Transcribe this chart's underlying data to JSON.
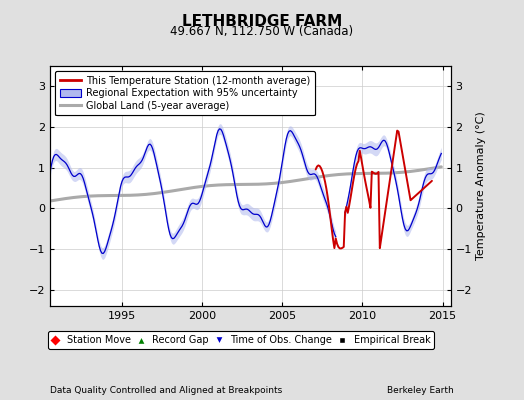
{
  "title": "LETHBRIDGE FARM",
  "subtitle": "49.667 N, 112.750 W (Canada)",
  "ylabel": "Temperature Anomaly (°C)",
  "footer_left": "Data Quality Controlled and Aligned at Breakpoints",
  "footer_right": "Berkeley Earth",
  "xlim": [
    1990.5,
    2015.5
  ],
  "ylim": [
    -2.4,
    3.5
  ],
  "yticks": [
    -2,
    -1,
    0,
    1,
    2,
    3
  ],
  "xticks": [
    1995,
    2000,
    2005,
    2010,
    2015
  ],
  "bg_color": "#e0e0e0",
  "plot_bg_color": "#ffffff",
  "red_color": "#cc0000",
  "blue_color": "#0000cc",
  "blue_fill_color": "#b0b8ee",
  "gray_color": "#aaaaaa",
  "legend1_label": "This Temperature Station (12-month average)",
  "legend2_label": "Regional Expectation with 95% uncertainty",
  "legend3_label": "Global Land (5-year average)",
  "legend4_label1": "Station Move",
  "legend4_label2": "Record Gap",
  "legend4_label3": "Time of Obs. Change",
  "legend4_label4": "Empirical Break"
}
